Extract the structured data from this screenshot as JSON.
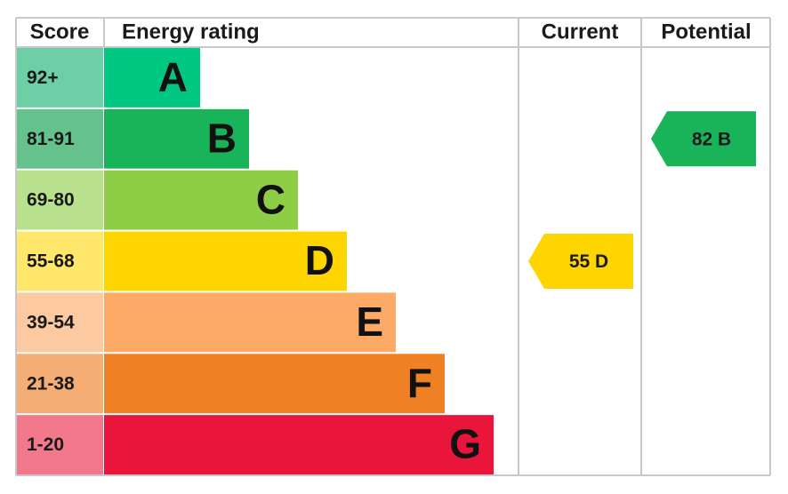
{
  "header": {
    "score": "Score",
    "energy_rating": "Energy rating",
    "current": "Current",
    "potential": "Potential"
  },
  "bands": [
    {
      "range": "92+",
      "letter": "A",
      "color": "#00c781",
      "light_color": "#6ccfa5"
    },
    {
      "range": "81-91",
      "letter": "B",
      "color": "#19b459",
      "light_color": "#65c28c"
    },
    {
      "range": "69-80",
      "letter": "C",
      "color": "#8dce46",
      "light_color": "#b9e08c"
    },
    {
      "range": "55-68",
      "letter": "D",
      "color": "#ffd500",
      "light_color": "#ffe76c"
    },
    {
      "range": "39-54",
      "letter": "E",
      "color": "#fcaa65",
      "light_color": "#fcc9a0"
    },
    {
      "range": "21-38",
      "letter": "F",
      "color": "#ef8023",
      "light_color": "#f4ad75"
    },
    {
      "range": "1-20",
      "letter": "G",
      "color": "#e9153b",
      "light_color": "#f2788c"
    }
  ],
  "current": {
    "score": 55,
    "rating": "D"
  },
  "potential": {
    "score": 82,
    "rating": "B"
  }
}
